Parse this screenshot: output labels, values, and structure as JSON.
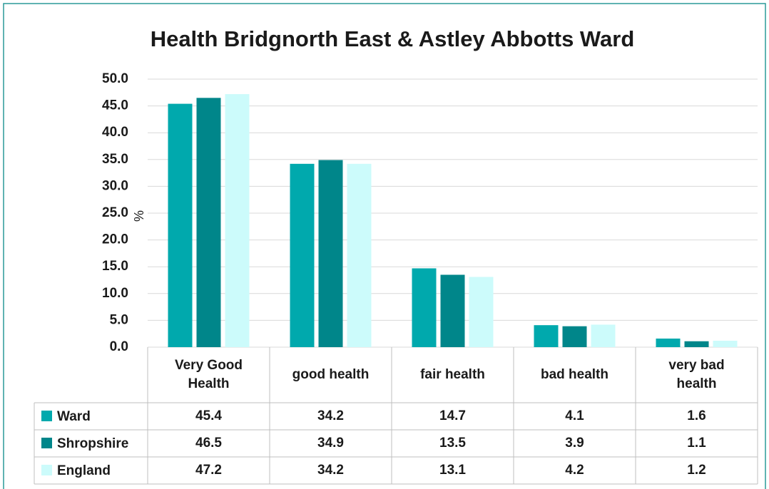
{
  "chart_data": {
    "type": "bar",
    "title": "Health Bridgnorth East & Astley Abbotts Ward",
    "y_label": "%",
    "categories": [
      "Very Good Health",
      "good health",
      "fair health",
      "bad health",
      "very bad health"
    ],
    "series": [
      {
        "name": "Ward",
        "color": "#00a9ad",
        "values": [
          45.4,
          34.2,
          14.7,
          4.1,
          1.6
        ]
      },
      {
        "name": "Shropshire",
        "color": "#00868a",
        "values": [
          46.5,
          34.9,
          13.5,
          3.9,
          1.1
        ]
      },
      {
        "name": "England",
        "color": "#ccfbfb",
        "values": [
          47.2,
          34.2,
          13.1,
          4.2,
          1.2
        ]
      }
    ],
    "ylim": [
      0,
      50
    ],
    "yticks": [
      {
        "value": 0,
        "label": "0.0"
      },
      {
        "value": 5,
        "label": "5.0"
      },
      {
        "value": 10,
        "label": "10.0"
      },
      {
        "value": 15,
        "label": "15.0"
      },
      {
        "value": 20,
        "label": "20.0"
      },
      {
        "value": 25,
        "label": "25.0"
      },
      {
        "value": 30,
        "label": "30.0"
      },
      {
        "value": 35,
        "label": "35.0"
      },
      {
        "value": 40,
        "label": "40.0"
      },
      {
        "value": 45,
        "label": "45.0"
      },
      {
        "value": 50,
        "label": "50.0"
      }
    ],
    "grid": true,
    "legend": "table"
  }
}
